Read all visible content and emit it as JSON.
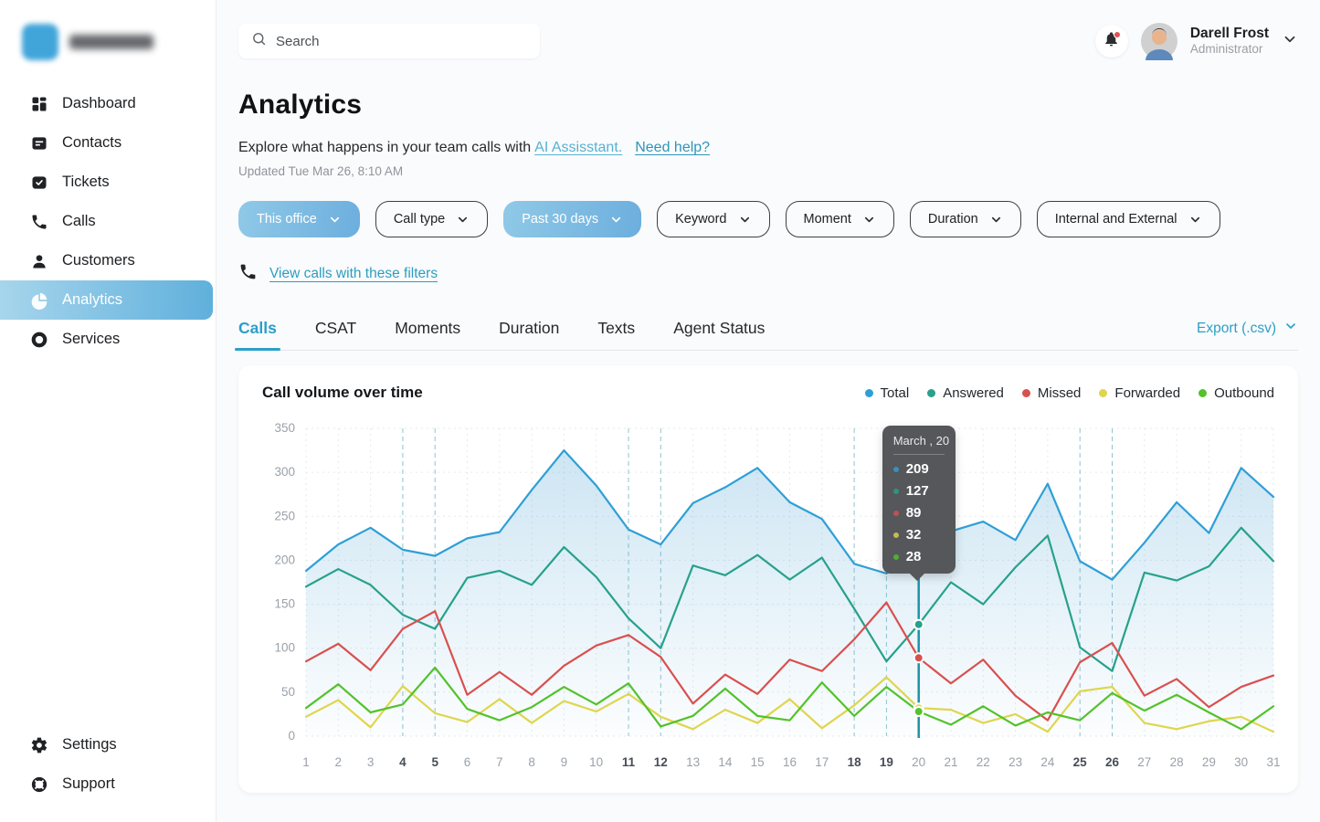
{
  "colors": {
    "accent_teal": "#2b9fc9",
    "active_chip_gradient_start": "#90c9e7",
    "active_chip_gradient_end": "#6caede",
    "sidebar_active_gradient_start": "#a7d5ec",
    "sidebar_active_gradient_end": "#5fb0dc",
    "tooltip_bg": "#55575b",
    "weekend_gridline": "#8fc3cc"
  },
  "sidebar": {
    "nav": [
      {
        "label": "Dashboard",
        "icon": "dashboard-icon",
        "active": false
      },
      {
        "label": "Contacts",
        "icon": "contacts-icon",
        "active": false
      },
      {
        "label": "Tickets",
        "icon": "tickets-icon",
        "active": false
      },
      {
        "label": "Calls",
        "icon": "calls-icon",
        "active": false
      },
      {
        "label": "Customers",
        "icon": "customers-icon",
        "active": false
      },
      {
        "label": "Analytics",
        "icon": "analytics-icon",
        "active": true
      },
      {
        "label": "Services",
        "icon": "services-icon",
        "active": false
      }
    ],
    "footer_nav": [
      {
        "label": "Settings",
        "icon": "settings-icon",
        "active": false
      },
      {
        "label": "Support",
        "icon": "support-icon",
        "active": false
      }
    ]
  },
  "header": {
    "search_placeholder": "Search",
    "user": {
      "name": "Darell Frost",
      "role": "Administrator"
    }
  },
  "page": {
    "title": "Analytics",
    "subtitle_prefix": "Explore what happens in your team calls with",
    "subtitle_link_assistant": "AI Assisstant.",
    "subtitle_link_help": "Need help?",
    "updated": "Updated Tue Mar 26, 8:10 AM"
  },
  "filters": [
    {
      "label": "This office",
      "active": true
    },
    {
      "label": "Call type",
      "active": false
    },
    {
      "label": "Past 30 days",
      "active": true
    },
    {
      "label": "Keyword",
      "active": false
    },
    {
      "label": "Moment",
      "active": false
    },
    {
      "label": "Duration",
      "active": false
    },
    {
      "label": "Internal and External",
      "active": false
    }
  ],
  "view_calls_link": "View calls with these filters",
  "tabs": {
    "items": [
      "Calls",
      "CSAT",
      "Moments",
      "Duration",
      "Texts",
      "Agent Status"
    ],
    "active": "Calls",
    "export_label": "Export (.csv)"
  },
  "chart_card": {
    "title": "Call volume over time"
  },
  "chart_data": {
    "type": "line",
    "title": "Call volume over time",
    "x": [
      1,
      2,
      3,
      4,
      5,
      6,
      7,
      8,
      9,
      10,
      11,
      12,
      13,
      14,
      15,
      16,
      17,
      18,
      19,
      20,
      21,
      22,
      23,
      24,
      25,
      26,
      27,
      28,
      29,
      30,
      31
    ],
    "weekend_days": [
      4,
      5,
      11,
      12,
      18,
      19,
      25,
      26
    ],
    "ylim": [
      0,
      350
    ],
    "yticks": [
      0,
      50,
      100,
      150,
      200,
      250,
      300,
      350
    ],
    "grid": true,
    "legend_position": "top-right",
    "series": [
      {
        "name": "Total",
        "color": "#2f9fd6",
        "area_fill": true,
        "values": [
          188,
          218,
          237,
          212,
          205,
          225,
          232,
          280,
          325,
          285,
          235,
          218,
          265,
          283,
          305,
          266,
          247,
          196,
          185,
          209,
          233,
          244,
          223,
          287,
          199,
          178,
          220,
          266,
          231,
          305,
          272
        ]
      },
      {
        "name": "Answered",
        "color": "#27a18b",
        "area_fill": false,
        "values": [
          170,
          190,
          172,
          138,
          122,
          180,
          188,
          172,
          215,
          181,
          134,
          100,
          194,
          183,
          206,
          178,
          203,
          145,
          85,
          127,
          175,
          150,
          192,
          228,
          101,
          74,
          186,
          177,
          193,
          237,
          199
        ]
      },
      {
        "name": "Missed",
        "color": "#d9504f",
        "area_fill": false,
        "values": [
          85,
          105,
          75,
          122,
          142,
          47,
          73,
          47,
          80,
          103,
          115,
          90,
          37,
          70,
          48,
          87,
          74,
          110,
          152,
          89,
          60,
          87,
          46,
          18,
          84,
          106,
          46,
          65,
          33,
          56,
          69
        ]
      },
      {
        "name": "Forwarded",
        "color": "#ded64e",
        "area_fill": false,
        "values": [
          22,
          41,
          10,
          57,
          26,
          16,
          42,
          15,
          40,
          28,
          48,
          22,
          8,
          30,
          15,
          42,
          9,
          35,
          67,
          32,
          30,
          15,
          25,
          5,
          51,
          56,
          15,
          8,
          17,
          22,
          5
        ]
      },
      {
        "name": "Outbound",
        "color": "#53c22b",
        "area_fill": false,
        "values": [
          32,
          59,
          27,
          36,
          78,
          31,
          18,
          33,
          56,
          36,
          60,
          11,
          23,
          54,
          23,
          18,
          61,
          23,
          56,
          28,
          13,
          34,
          12,
          27,
          18,
          49,
          29,
          47,
          27,
          8,
          34
        ]
      }
    ],
    "tooltip": {
      "title": "March , 20",
      "day": 20,
      "values": [
        209,
        127,
        89,
        32,
        28
      ]
    }
  }
}
